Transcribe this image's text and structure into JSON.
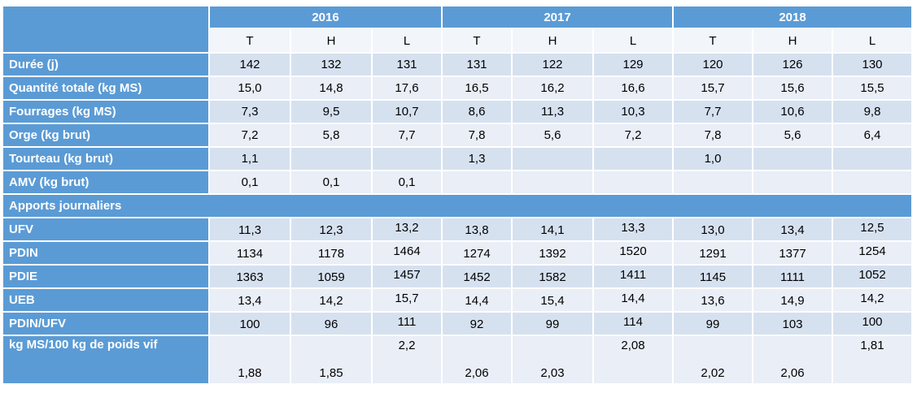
{
  "years": [
    "2016",
    "2017",
    "2018"
  ],
  "subheaders": [
    "T",
    "H",
    "L",
    "T",
    "H",
    "L",
    "T",
    "H",
    "L"
  ],
  "rows1": [
    {
      "label": "Durée (j)",
      "values": [
        "142",
        "132",
        "131",
        "131",
        "122",
        "129",
        "120",
        "126",
        "130"
      ]
    },
    {
      "label": "Quantité totale (kg MS)",
      "values": [
        "15,0",
        "14,8",
        "17,6",
        "16,5",
        "16,2",
        "16,6",
        "15,7",
        "15,6",
        "15,5"
      ]
    },
    {
      "label": "Fourrages (kg MS)",
      "values": [
        "7,3",
        "9,5",
        "10,7",
        "8,6",
        "11,3",
        "10,3",
        "7,7",
        "10,6",
        "9,8"
      ]
    },
    {
      "label": "Orge (kg brut)",
      "values": [
        "7,2",
        "5,8",
        "7,7",
        "7,8",
        "5,6",
        "7,2",
        "7,8",
        "5,6",
        "6,4"
      ]
    },
    {
      "label": "Tourteau (kg brut)",
      "values": [
        "1,1",
        "",
        "",
        "1,3",
        "",
        "",
        "1,0",
        "",
        ""
      ]
    },
    {
      "label": "AMV (kg brut)",
      "values": [
        "0,1",
        "0,1",
        "0,1",
        "",
        "",
        "",
        "",
        "",
        ""
      ]
    }
  ],
  "section_label": "Apports journaliers",
  "rows2": [
    {
      "label": "UFV",
      "values": [
        "11,3",
        "12,3",
        "13,2",
        "13,8",
        "14,1",
        "13,3",
        "13,0",
        "13,4",
        "12,5"
      ]
    },
    {
      "label": "PDIN",
      "values": [
        "1134",
        "1178",
        "1464",
        "1274",
        "1392",
        "1520",
        "1291",
        "1377",
        "1254"
      ]
    },
    {
      "label": "PDIE",
      "values": [
        "1363",
        "1059",
        "1457",
        "1452",
        "1582",
        "1411",
        "1145",
        "1111",
        "1052"
      ]
    },
    {
      "label": "UEB",
      "values": [
        "13,4",
        "14,2",
        "15,7",
        "14,4",
        "15,4",
        "14,4",
        "13,6",
        "14,9",
        "14,2"
      ]
    },
    {
      "label": "PDIN/UFV",
      "values": [
        "100",
        "96",
        "111",
        "92",
        "99",
        "114",
        "99",
        "103",
        "100"
      ]
    },
    {
      "label": "kg MS/100 kg de poids vif",
      "values": [
        "1,88",
        "1,85",
        "2,2",
        "2,06",
        "2,03",
        "2,08",
        "2,02",
        "2,06",
        "1,81"
      ]
    }
  ]
}
